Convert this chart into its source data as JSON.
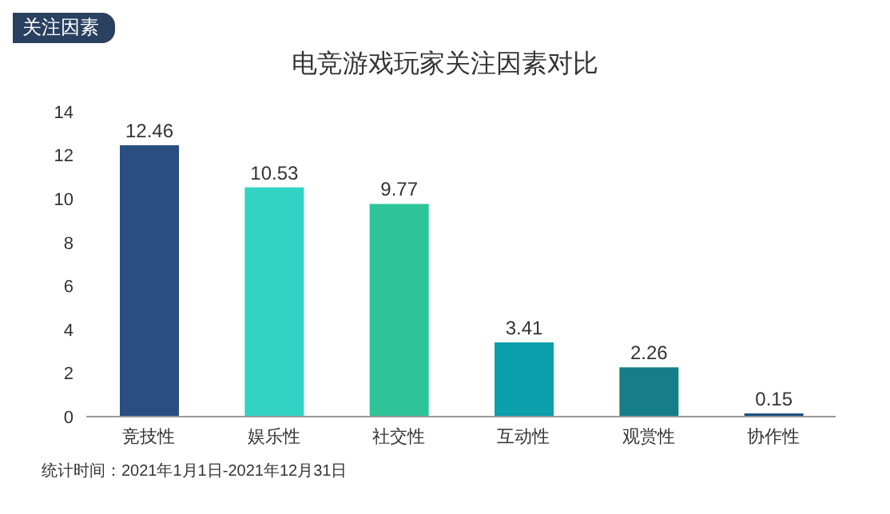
{
  "chart_data": {
    "type": "bar",
    "title": "电竞游戏玩家关注因素对比",
    "categories": [
      "竞技性",
      "娱乐性",
      "社交性",
      "互动性",
      "观赏性",
      "协作性"
    ],
    "values": [
      12.46,
      10.53,
      9.77,
      3.41,
      2.26,
      0.15
    ],
    "colors": [
      "#2a4e82",
      "#33d3c3",
      "#2fc497",
      "#0b9eab",
      "#157e87",
      "#1f4d7d"
    ],
    "ylim": [
      0,
      14
    ],
    "yticks": [
      0,
      2,
      4,
      6,
      8,
      10,
      12,
      14
    ],
    "grid": false,
    "data_labels": true,
    "annotations": [
      "关注因素",
      "统计时间：2021年1月1日-2021年12月31日"
    ]
  }
}
